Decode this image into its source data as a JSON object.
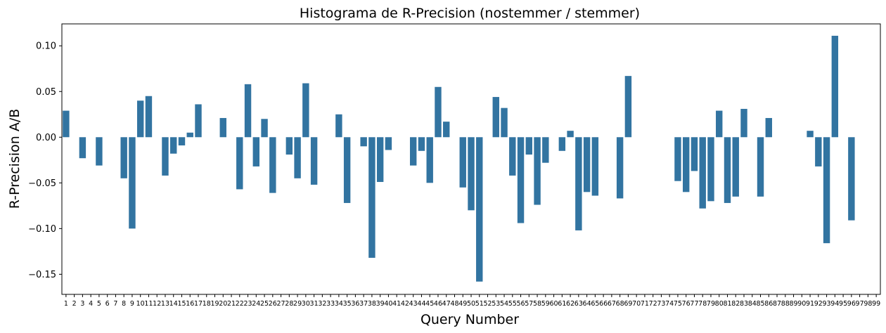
{
  "chart_data": {
    "type": "bar",
    "title": "Histograma de R-Precision (nostemmer / stemmer)",
    "xlabel": "Query Number",
    "ylabel": "R-Precision A/B",
    "ylim": [
      -0.172,
      0.124
    ],
    "yticks": [
      0.1,
      0.05,
      0.0,
      -0.05,
      -0.1,
      -0.15
    ],
    "ytick_labels": [
      "0.10",
      "0.05",
      "0.00",
      "−0.05",
      "−0.10",
      "−0.15"
    ],
    "grid": false,
    "bar_color": "#3274a1",
    "categories": [
      "1",
      "2",
      "3",
      "4",
      "5",
      "6",
      "7",
      "8",
      "9",
      "10",
      "11",
      "12",
      "13",
      "14",
      "15",
      "16",
      "17",
      "18",
      "19",
      "20",
      "21",
      "22",
      "23",
      "24",
      "25",
      "26",
      "27",
      "28",
      "29",
      "30",
      "31",
      "32",
      "33",
      "34",
      "35",
      "36",
      "37",
      "38",
      "39",
      "40",
      "41",
      "42",
      "43",
      "44",
      "45",
      "46",
      "47",
      "48",
      "49",
      "50",
      "51",
      "52",
      "53",
      "54",
      "55",
      "56",
      "57",
      "58",
      "59",
      "60",
      "61",
      "62",
      "63",
      "64",
      "65",
      "66",
      "67",
      "68",
      "69",
      "70",
      "71",
      "72",
      "73",
      "74",
      "75",
      "76",
      "77",
      "78",
      "79",
      "80",
      "81",
      "82",
      "83",
      "84",
      "85",
      "86",
      "87",
      "88",
      "89",
      "90",
      "91",
      "92",
      "93",
      "94",
      "95",
      "96",
      "97",
      "98",
      "99"
    ],
    "values": [
      0.029,
      0,
      -0.023,
      0,
      -0.031,
      0,
      0,
      -0.045,
      -0.1,
      0.04,
      0.045,
      0,
      -0.042,
      -0.018,
      -0.009,
      0.005,
      0.036,
      0,
      0,
      0.021,
      0,
      -0.057,
      0.058,
      -0.032,
      0.02,
      -0.061,
      0,
      -0.019,
      -0.045,
      0.059,
      -0.052,
      0,
      0,
      0.025,
      -0.072,
      0,
      -0.01,
      -0.132,
      -0.049,
      -0.014,
      0,
      0,
      -0.031,
      -0.015,
      -0.05,
      0.055,
      0.017,
      0,
      -0.055,
      -0.08,
      -0.158,
      0,
      0.044,
      0.032,
      -0.042,
      -0.094,
      -0.019,
      -0.074,
      -0.028,
      0,
      -0.015,
      0.007,
      -0.102,
      -0.06,
      -0.064,
      0,
      0,
      -0.067,
      0.067,
      0,
      0,
      0,
      0,
      0,
      -0.048,
      -0.06,
      -0.037,
      -0.078,
      -0.07,
      0.029,
      -0.072,
      -0.065,
      0.031,
      0,
      -0.065,
      0.021,
      0,
      0,
      0,
      0,
      0.007,
      -0.032,
      -0.116,
      0.111,
      0,
      -0.091,
      0,
      0,
      0
    ]
  }
}
